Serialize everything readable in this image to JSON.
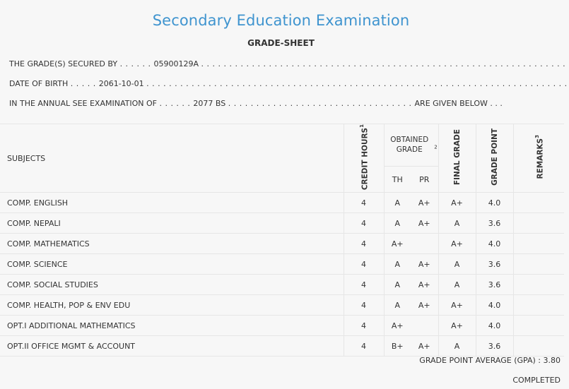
{
  "header": {
    "title": "Secondary Education Examination",
    "subtitle": "GRADE-SHEET"
  },
  "info": {
    "secured_by_label": "THE GRADE(S) SECURED BY",
    "secured_by_value": "05900129A",
    "dob_label": "DATE OF BIRTH",
    "dob_value": "2061-10-01",
    "exam_label": "IN THE ANNUAL SEE EXAMINATION OF",
    "exam_value": "2077 BS",
    "exam_suffix": "ARE GIVEN BELOW . . ."
  },
  "table": {
    "headers": {
      "subjects": "SUBJECTS",
      "credit_hours": "CREDIT HOURS",
      "credit_sup": "1",
      "obtained_grade": "OBTAINED GRADE",
      "obtained_sup": "2",
      "th": "TH",
      "pr": "PR",
      "final_grade": "FINAL GRADE",
      "grade_point": "GRADE POINT",
      "remarks": "REMARKS",
      "remarks_sup": "3"
    },
    "rows": [
      {
        "subject": "COMP. ENGLISH",
        "credit": "4",
        "th": "A",
        "pr": "A+",
        "final": "A+",
        "gp": "4.0",
        "remarks": ""
      },
      {
        "subject": "COMP. NEPALI",
        "credit": "4",
        "th": "A",
        "pr": "A+",
        "final": "A",
        "gp": "3.6",
        "remarks": ""
      },
      {
        "subject": "COMP. MATHEMATICS",
        "credit": "4",
        "th": "A+",
        "pr": "",
        "final": "A+",
        "gp": "4.0",
        "remarks": ""
      },
      {
        "subject": "COMP. SCIENCE",
        "credit": "4",
        "th": "A",
        "pr": "A+",
        "final": "A",
        "gp": "3.6",
        "remarks": ""
      },
      {
        "subject": "COMP. SOCIAL STUDIES",
        "credit": "4",
        "th": "A",
        "pr": "A+",
        "final": "A",
        "gp": "3.6",
        "remarks": ""
      },
      {
        "subject": "COMP. HEALTH, POP & ENV EDU",
        "credit": "4",
        "th": "A",
        "pr": "A+",
        "final": "A+",
        "gp": "4.0",
        "remarks": ""
      },
      {
        "subject": "OPT.I ADDITIONAL MATHEMATICS",
        "credit": "4",
        "th": "A+",
        "pr": "",
        "final": "A+",
        "gp": "4.0",
        "remarks": ""
      },
      {
        "subject": "OPT.II OFFICE MGMT & ACCOUNT",
        "credit": "4",
        "th": "B+",
        "pr": "A+",
        "final": "A",
        "gp": "3.6",
        "remarks": ""
      }
    ]
  },
  "summary": {
    "gpa_label": "GRADE POINT AVERAGE (GPA) :",
    "gpa_value": "3.80",
    "status": "COMPLETED"
  }
}
